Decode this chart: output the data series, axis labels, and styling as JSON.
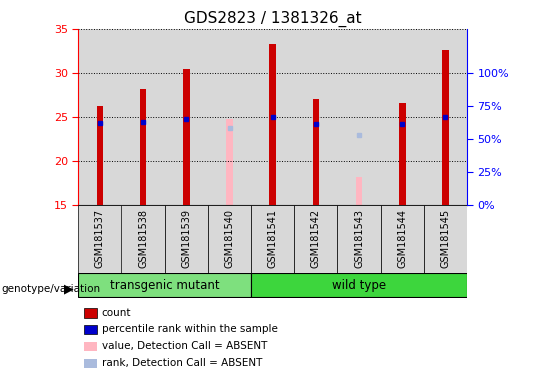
{
  "title": "GDS2823 / 1381326_at",
  "samples": [
    "GSM181537",
    "GSM181538",
    "GSM181539",
    "GSM181540",
    "GSM181541",
    "GSM181542",
    "GSM181543",
    "GSM181544",
    "GSM181545"
  ],
  "count_values": [
    26.3,
    28.2,
    30.4,
    null,
    33.3,
    27.0,
    null,
    26.6,
    32.6
  ],
  "percentile_values": [
    24.3,
    24.5,
    24.8,
    null,
    25.0,
    24.2,
    null,
    24.2,
    25.0
  ],
  "absent_value_values": [
    26.3,
    null,
    null,
    24.8,
    null,
    null,
    18.2,
    null,
    null
  ],
  "absent_rank_values": [
    null,
    null,
    null,
    23.8,
    null,
    null,
    23.0,
    null,
    null
  ],
  "ylim": [
    15,
    35
  ],
  "yticks": [
    15,
    20,
    25,
    30,
    35
  ],
  "right_ytick_labels": [
    "0%",
    "25%",
    "50%",
    "75%",
    "100%"
  ],
  "right_yvals": [
    15,
    18.75,
    22.5,
    26.25,
    30
  ],
  "groups": [
    {
      "label": "transgenic mutant",
      "start": 0,
      "end": 4,
      "color": "#7EE07E"
    },
    {
      "label": "wild type",
      "start": 4,
      "end": 9,
      "color": "#3DD63D"
    }
  ],
  "color_count": "#CC0000",
  "color_percentile": "#0000CC",
  "color_absent_value": "#FFB6C1",
  "color_absent_rank": "#AABBDD",
  "col_bg": "#D8D8D8",
  "grid_color": "#000000",
  "label_fontsize": 7,
  "title_fontsize": 11,
  "genotype_label": "genotype/variation"
}
